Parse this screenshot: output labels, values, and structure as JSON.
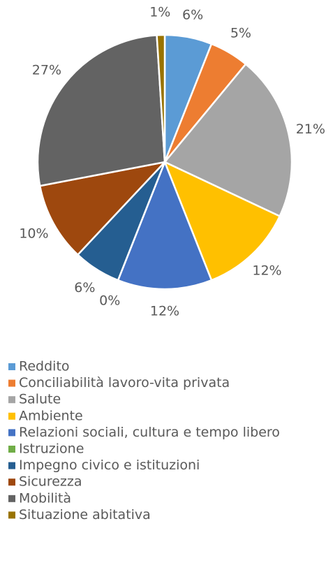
{
  "chart_data": {
    "type": "pie",
    "categories": [
      "Reddito",
      "Conciliabilità lavoro-vita privata",
      "Salute",
      "Ambiente",
      "Relazioni sociali, cultura e tempo libero",
      "Istruzione",
      "Impegno civico e istituzioni",
      "Sicurezza",
      "Mobilità",
      "Situazione abitativa"
    ],
    "values": [
      6,
      5,
      21,
      12,
      12,
      0,
      6,
      10,
      27,
      1
    ],
    "value_labels": [
      "6%",
      "5%",
      "21%",
      "12%",
      "12%",
      "0%",
      "6%",
      "10%",
      "27%",
      "1%"
    ],
    "colors": [
      "#5b9bd5",
      "#ed7d31",
      "#a5a5a5",
      "#ffc000",
      "#4472c4",
      "#70ad47",
      "#255e91",
      "#9e480e",
      "#636363",
      "#997300"
    ],
    "legend": "bottom"
  }
}
